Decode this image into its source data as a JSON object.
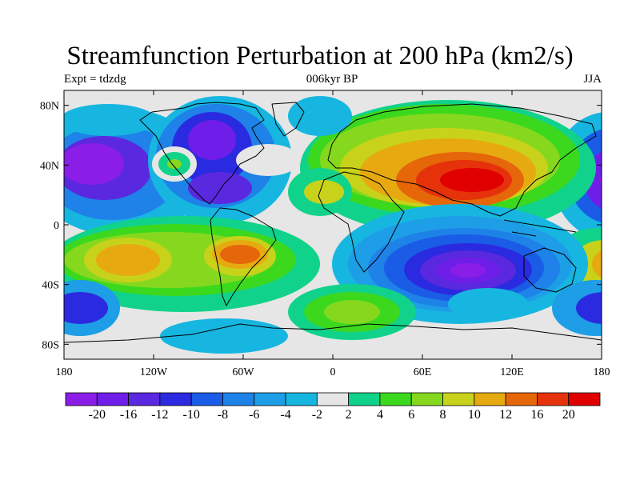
{
  "title": "Streamfunction Perturbation at 200 hPa (km2/s)",
  "subtitle_left": "Expt = tdzdg",
  "subtitle_center": "006kyr BP",
  "subtitle_right": "JJA",
  "lat_labels": [
    "80N",
    "40N",
    "0",
    "40S",
    "80S"
  ],
  "lon_labels": [
    "180",
    "120W",
    "60W",
    "0",
    "60E",
    "120E",
    "180"
  ],
  "colorbar": {
    "labels": [
      "-20",
      "-16",
      "-12",
      "-10",
      "-8",
      "-6",
      "-4",
      "-2",
      "2",
      "4",
      "6",
      "8",
      "10",
      "12",
      "16",
      "20"
    ],
    "colors": [
      "#8a1ee6",
      "#6e1ee8",
      "#5a28de",
      "#2a2ae0",
      "#1a5ce6",
      "#1e82e8",
      "#1e9ee6",
      "#16b6e0",
      "#e6e6e6",
      "#10d28a",
      "#3cd81e",
      "#86d81e",
      "#c8d21a",
      "#e6aa10",
      "#e6660a",
      "#e6320a",
      "#e00000"
    ]
  },
  "map_background_color": "#e6e6e6",
  "land_outline_color": "#000000"
}
